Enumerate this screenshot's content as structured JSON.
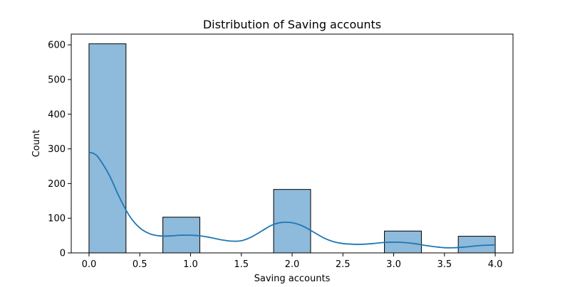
{
  "chart_data": {
    "type": "bar",
    "title": "Distribution of Saving accounts",
    "xlabel": "Saving accounts",
    "ylabel": "Count",
    "xlim": [
      -0.175,
      4.175
    ],
    "ylim": [
      0,
      631
    ],
    "xticks": [
      0.0,
      0.5,
      1.0,
      1.5,
      2.0,
      2.5,
      3.0,
      3.5,
      4.0
    ],
    "xtick_labels": [
      "0.0",
      "0.5",
      "1.0",
      "1.5",
      "2.0",
      "2.5",
      "3.0",
      "3.5",
      "4.0"
    ],
    "yticks": [
      0,
      100,
      200,
      300,
      400,
      500,
      600
    ],
    "ytick_labels": [
      "0",
      "100",
      "200",
      "300",
      "400",
      "500",
      "600"
    ],
    "bins": [
      {
        "x0": 0.0,
        "x1": 0.364,
        "count": 603
      },
      {
        "x0": 0.727,
        "x1": 1.091,
        "count": 103
      },
      {
        "x0": 1.818,
        "x1": 2.182,
        "count": 183
      },
      {
        "x0": 2.909,
        "x1": 3.273,
        "count": 63
      },
      {
        "x0": 3.636,
        "x1": 4.0,
        "count": 48
      }
    ],
    "kde": {
      "x": [
        0.0,
        0.05,
        0.1,
        0.2,
        0.3,
        0.4,
        0.5,
        0.6,
        0.7,
        0.8,
        0.9,
        1.0,
        1.1,
        1.2,
        1.3,
        1.4,
        1.5,
        1.6,
        1.7,
        1.8,
        1.9,
        2.0,
        2.1,
        2.2,
        2.3,
        2.4,
        2.5,
        2.6,
        2.7,
        2.8,
        2.9,
        3.0,
        3.1,
        3.2,
        3.3,
        3.4,
        3.5,
        3.6,
        3.7,
        3.8,
        3.9,
        4.0
      ],
      "y": [
        290,
        286,
        272,
        224,
        160,
        106,
        72,
        55,
        49,
        49,
        51,
        51,
        49,
        44,
        38,
        34,
        35,
        46,
        63,
        80,
        88,
        87,
        78,
        62,
        45,
        33,
        27,
        25,
        25,
        27,
        30,
        31,
        30,
        27,
        22,
        18,
        15,
        15,
        17,
        20,
        22,
        23
      ]
    },
    "grid": false,
    "legend": "none",
    "colors": {
      "bar_fill": "#8ebadb",
      "bar_edge": "#000000",
      "kde_line": "#1f77b4"
    }
  }
}
